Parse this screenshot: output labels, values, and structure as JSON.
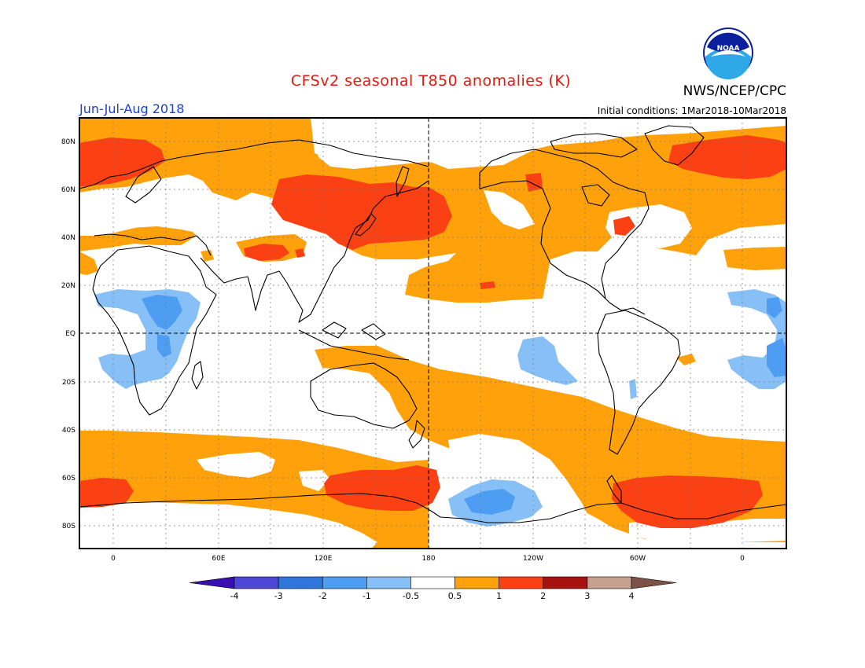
{
  "header": {
    "title": "CFSv2 seasonal T850 anomalies (K)",
    "agency": "NWS/NCEP/CPC",
    "logo_text": "NOAA",
    "season": "Jun-Jul-Aug 2018",
    "initial_conditions": "Initial conditions: 1Mar2018-10Mar2018"
  },
  "map": {
    "lat_labels": [
      "80N",
      "60N",
      "40N",
      "20N",
      "EQ",
      "20S",
      "40S",
      "60S",
      "80S"
    ],
    "lon_labels": [
      "0",
      "60E",
      "120E",
      "180",
      "120W",
      "60W",
      "0"
    ]
  },
  "colorbar": {
    "ticks": [
      "-4",
      "-3",
      "-2",
      "-1",
      "-0.5",
      "0.5",
      "1",
      "2",
      "3",
      "4"
    ],
    "colors": [
      "#3a0fb0",
      "#4c47d6",
      "#2f75dc",
      "#4d9df2",
      "#86c0f7",
      "#ffffff",
      "#ffa10b",
      "#fb4113",
      "#a8110f",
      "#c7a190",
      "#7d5147"
    ]
  },
  "colors": {
    "warm_1": "#ffa10b",
    "warm_2": "#fb4113",
    "cool_1": "#86c0f7",
    "cool_2": "#4d9df2",
    "title": "#e8170d",
    "season": "#1d3fd6"
  }
}
